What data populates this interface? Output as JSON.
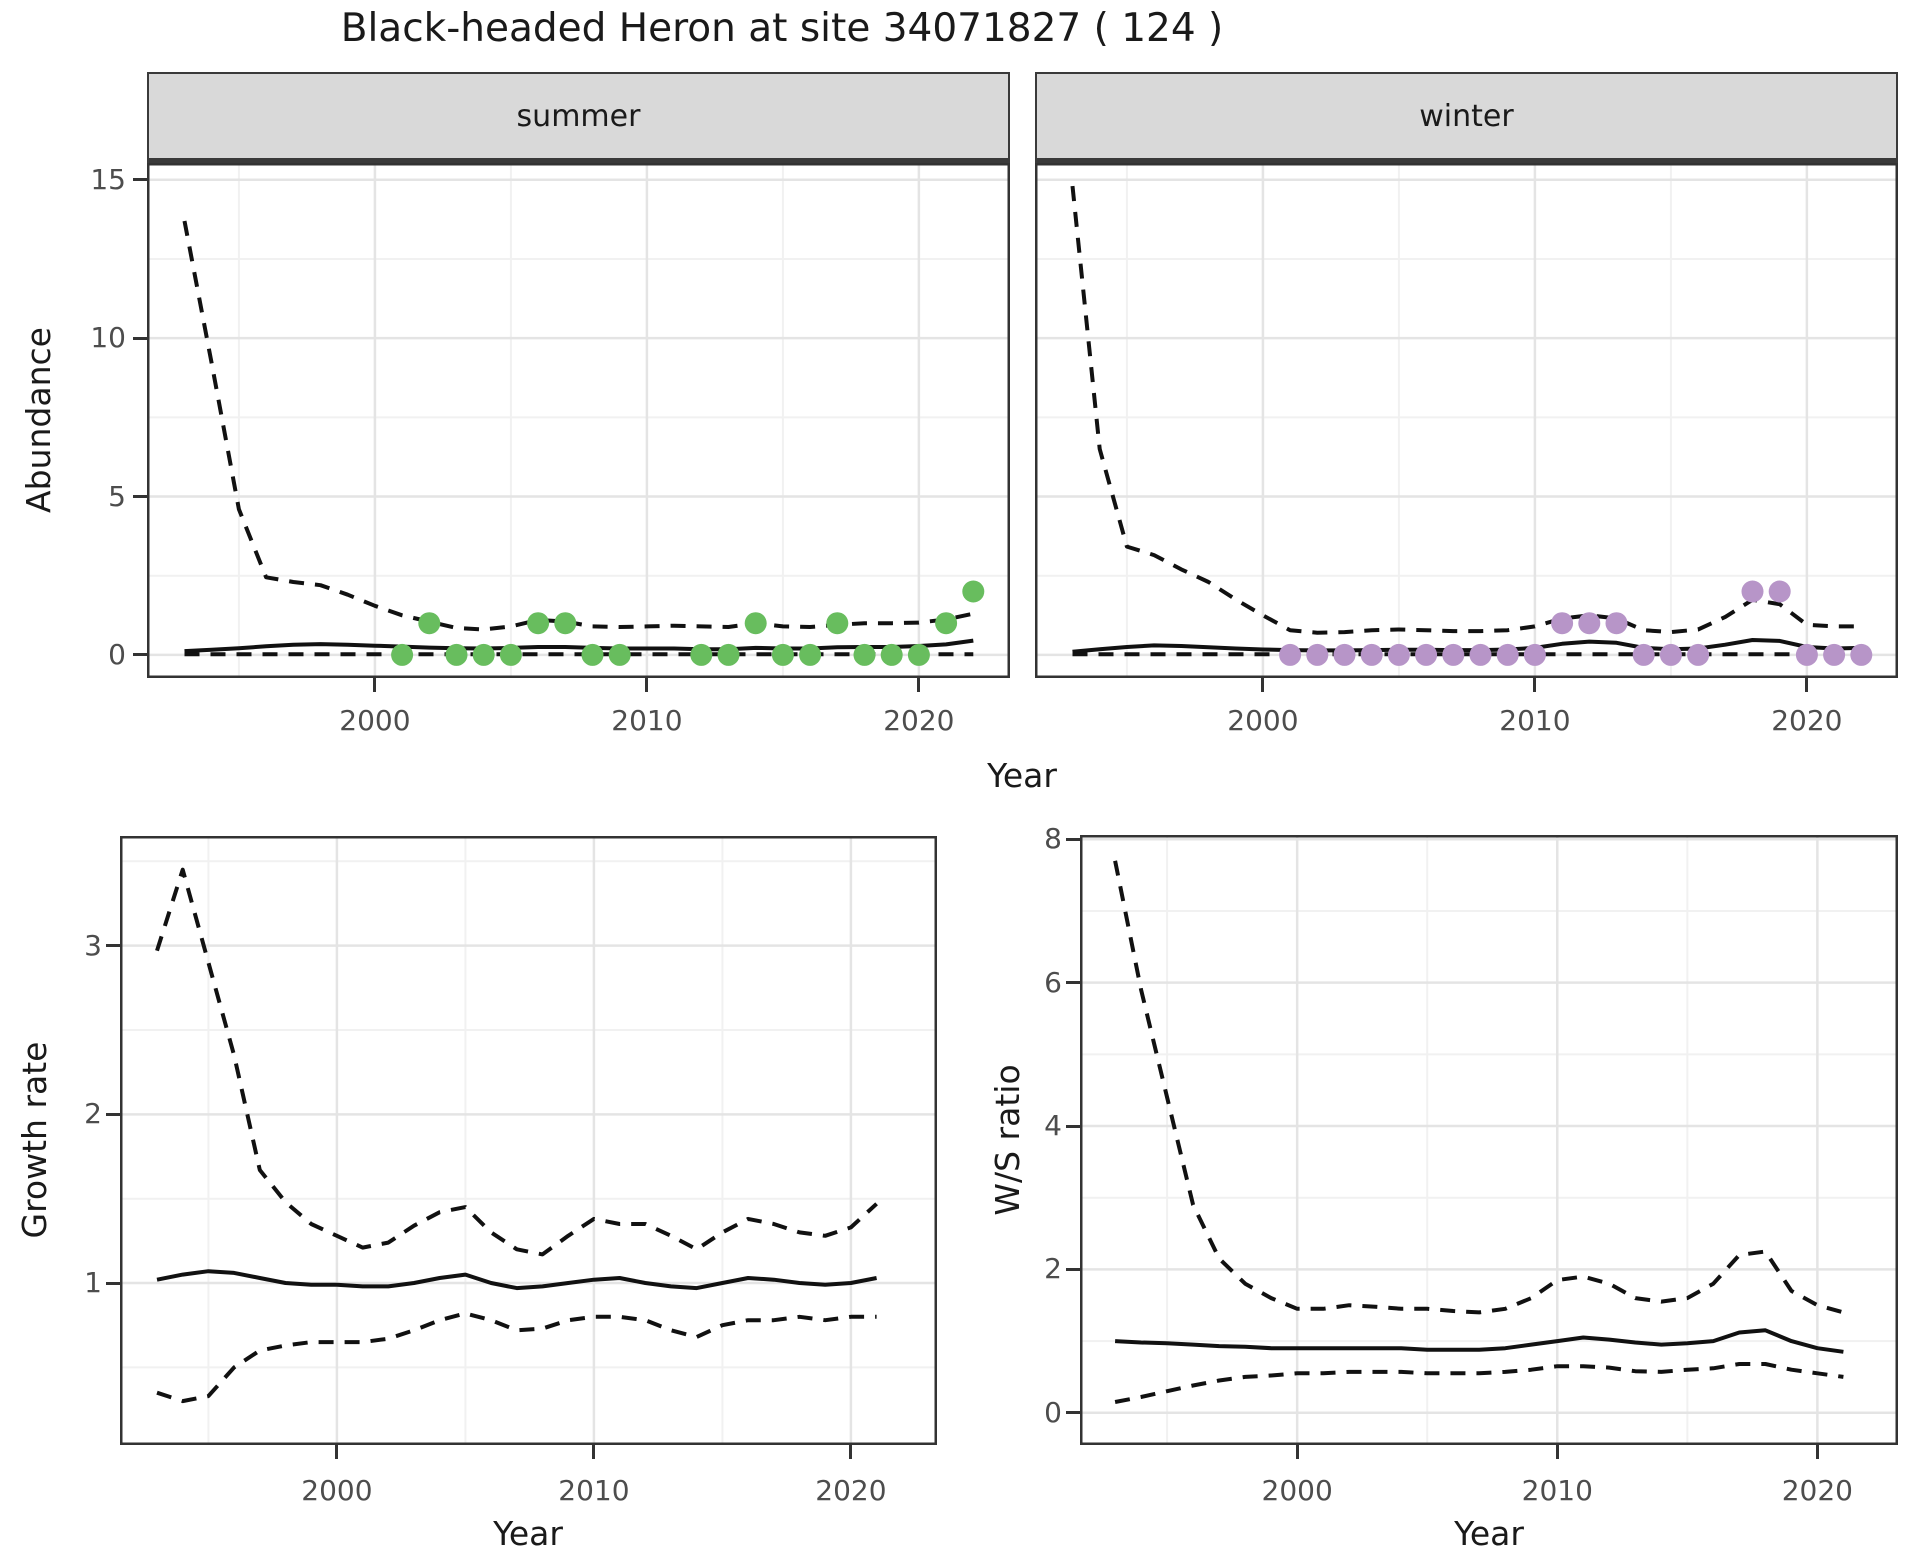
{
  "title": "Black-headed Heron at site 34071827 ( 124 )",
  "axis_titles": {
    "abundance": "Abundance",
    "growth_rate": "Growth rate",
    "ws_ratio": "W/S ratio",
    "year": "Year"
  },
  "colors": {
    "line": "#111111",
    "grid_major": "#e4e4e4",
    "grid_minor": "#f1f1f1",
    "panel_border": "#333333",
    "strip_bg": "#d9d9d9",
    "summer_point": "#68bd5e",
    "winter_point": "#b795c8",
    "tick_text": "#4d4d4d"
  },
  "chart_data": [
    {
      "type": "line",
      "panel": "abundance-summer",
      "facet_label": "summer",
      "xlabel": "Year",
      "ylabel": "Abundance",
      "xlim": [
        1991.62,
        2023.35
      ],
      "ylim": [
        -0.73,
        15.53
      ],
      "x_ticks": [
        2000,
        2010,
        2020
      ],
      "x_minor": [
        1995,
        2005,
        2015
      ],
      "y_ticks": [
        0,
        5,
        10,
        15
      ],
      "y_minor": [
        2.5,
        7.5,
        12.5
      ],
      "series": [
        {
          "name": "upper-95ci",
          "style": "dashed",
          "x_start": 1993,
          "values": [
            13.7,
            9.2,
            4.6,
            2.45,
            2.3,
            2.2,
            1.9,
            1.55,
            1.25,
            1.05,
            0.85,
            0.8,
            0.9,
            1.1,
            1.05,
            0.9,
            0.88,
            0.9,
            0.92,
            0.9,
            0.88,
            1.0,
            0.9,
            0.88,
            0.95,
            1.0,
            1.0,
            1.02,
            1.12,
            1.3
          ]
        },
        {
          "name": "mean-abundance",
          "style": "solid",
          "x_start": 1993,
          "values": [
            0.12,
            0.16,
            0.21,
            0.27,
            0.32,
            0.34,
            0.32,
            0.29,
            0.26,
            0.23,
            0.21,
            0.2,
            0.22,
            0.25,
            0.25,
            0.22,
            0.2,
            0.2,
            0.2,
            0.18,
            0.18,
            0.22,
            0.2,
            0.2,
            0.24,
            0.25,
            0.25,
            0.28,
            0.33,
            0.45
          ]
        },
        {
          "name": "lower-95ci",
          "style": "dashed",
          "x_start": 1993,
          "values": [
            0.02,
            0.02,
            0.02,
            0.02,
            0.02,
            0.02,
            0.02,
            0.02,
            0.02,
            0.02,
            0.02,
            0.02,
            0.02,
            0.02,
            0.02,
            0.02,
            0.02,
            0.02,
            0.02,
            0.02,
            0.02,
            0.02,
            0.02,
            0.02,
            0.02,
            0.02,
            0.02,
            0.02,
            0.02,
            0.02
          ]
        }
      ],
      "observations": {
        "name": "summer-counts",
        "color": "#68bd5e",
        "points": [
          [
            2001,
            0
          ],
          [
            2002,
            1
          ],
          [
            2003,
            0
          ],
          [
            2004,
            0
          ],
          [
            2005,
            0
          ],
          [
            2006,
            1
          ],
          [
            2007,
            1
          ],
          [
            2008,
            0
          ],
          [
            2009,
            0
          ],
          [
            2012,
            0
          ],
          [
            2013,
            0
          ],
          [
            2014,
            1
          ],
          [
            2015,
            0
          ],
          [
            2016,
            0
          ],
          [
            2017,
            1
          ],
          [
            2018,
            0
          ],
          [
            2019,
            0
          ],
          [
            2020,
            0
          ],
          [
            2021,
            1
          ],
          [
            2022,
            2
          ]
        ]
      }
    },
    {
      "type": "line",
      "panel": "abundance-winter",
      "facet_label": "winter",
      "xlabel": "Year",
      "ylabel": "Abundance",
      "xlim": [
        1991.62,
        2023.35
      ],
      "ylim": [
        -0.73,
        15.53
      ],
      "x_ticks": [
        2000,
        2010,
        2020
      ],
      "x_minor": [
        1995,
        2005,
        2015
      ],
      "y_ticks": [
        0,
        5,
        10,
        15
      ],
      "y_minor": [
        2.5,
        7.5,
        12.5
      ],
      "series": [
        {
          "name": "upper-95ci",
          "style": "dashed",
          "x_start": 1993,
          "values": [
            14.8,
            6.5,
            3.42,
            3.15,
            2.7,
            2.3,
            1.75,
            1.25,
            0.78,
            0.7,
            0.72,
            0.78,
            0.8,
            0.78,
            0.75,
            0.75,
            0.78,
            0.9,
            1.15,
            1.25,
            1.15,
            0.78,
            0.72,
            0.8,
            1.2,
            1.74,
            1.6,
            0.95,
            0.9,
            0.9
          ]
        },
        {
          "name": "mean-abundance",
          "style": "solid",
          "x_start": 1993,
          "values": [
            0.1,
            0.18,
            0.25,
            0.3,
            0.28,
            0.24,
            0.2,
            0.17,
            0.15,
            0.14,
            0.14,
            0.15,
            0.16,
            0.16,
            0.15,
            0.15,
            0.17,
            0.22,
            0.35,
            0.42,
            0.38,
            0.22,
            0.18,
            0.2,
            0.32,
            0.47,
            0.44,
            0.25,
            0.2,
            0.22
          ]
        },
        {
          "name": "lower-95ci",
          "style": "dashed",
          "x_start": 1993,
          "values": [
            0.02,
            0.02,
            0.02,
            0.02,
            0.02,
            0.02,
            0.02,
            0.02,
            0.02,
            0.02,
            0.02,
            0.02,
            0.02,
            0.02,
            0.02,
            0.02,
            0.02,
            0.02,
            0.02,
            0.02,
            0.02,
            0.02,
            0.02,
            0.02,
            0.02,
            0.02,
            0.02,
            0.02,
            0.02,
            0.02
          ]
        }
      ],
      "observations": {
        "name": "winter-counts",
        "color": "#b795c8",
        "points": [
          [
            2001,
            0
          ],
          [
            2002,
            0
          ],
          [
            2003,
            0
          ],
          [
            2004,
            0
          ],
          [
            2005,
            0
          ],
          [
            2006,
            0
          ],
          [
            2007,
            0
          ],
          [
            2008,
            0
          ],
          [
            2009,
            0
          ],
          [
            2010,
            0
          ],
          [
            2011,
            1
          ],
          [
            2012,
            1
          ],
          [
            2013,
            1
          ],
          [
            2014,
            0
          ],
          [
            2015,
            0
          ],
          [
            2016,
            0
          ],
          [
            2018,
            2
          ],
          [
            2019,
            2
          ],
          [
            2020,
            0
          ],
          [
            2021,
            0
          ],
          [
            2022,
            0
          ]
        ]
      }
    },
    {
      "type": "line",
      "panel": "growth-rate",
      "xlabel": "Year",
      "ylabel": "Growth rate",
      "xlim": [
        1991.56,
        2023.35
      ],
      "ylim": [
        0.04,
        3.65
      ],
      "x_ticks": [
        2000,
        2010,
        2020
      ],
      "x_minor": [
        1995,
        2005,
        2015
      ],
      "y_ticks": [
        1,
        2,
        3
      ],
      "y_minor": [
        0.5,
        1.5,
        2.5,
        3.5
      ],
      "series": [
        {
          "name": "upper-95ci",
          "style": "dashed",
          "x_start": 1993,
          "values": [
            2.97,
            3.45,
            2.9,
            2.35,
            1.67,
            1.48,
            1.35,
            1.28,
            1.21,
            1.24,
            1.34,
            1.42,
            1.45,
            1.3,
            1.2,
            1.17,
            1.28,
            1.38,
            1.35,
            1.35,
            1.28,
            1.2,
            1.3,
            1.38,
            1.35,
            1.3,
            1.28,
            1.33,
            1.47
          ]
        },
        {
          "name": "mean-growth-rate",
          "style": "solid",
          "x_start": 1993,
          "values": [
            1.02,
            1.05,
            1.07,
            1.06,
            1.03,
            1.0,
            0.99,
            0.99,
            0.98,
            0.98,
            1.0,
            1.03,
            1.05,
            1.0,
            0.97,
            0.98,
            1.0,
            1.02,
            1.03,
            1.0,
            0.98,
            0.97,
            1.0,
            1.03,
            1.02,
            1.0,
            0.99,
            1.0,
            1.03
          ]
        },
        {
          "name": "lower-95ci",
          "style": "dashed",
          "x_start": 1993,
          "values": [
            0.35,
            0.3,
            0.33,
            0.5,
            0.6,
            0.63,
            0.65,
            0.65,
            0.65,
            0.67,
            0.72,
            0.78,
            0.82,
            0.78,
            0.72,
            0.73,
            0.78,
            0.8,
            0.8,
            0.78,
            0.72,
            0.68,
            0.75,
            0.78,
            0.78,
            0.8,
            0.78,
            0.8,
            0.8
          ]
        }
      ]
    },
    {
      "type": "line",
      "panel": "ws-ratio",
      "xlabel": "Year",
      "ylabel": "W/S ratio",
      "xlim": [
        1991.65,
        2023.1
      ],
      "ylim": [
        -0.45,
        8.06
      ],
      "x_ticks": [
        2000,
        2010,
        2020
      ],
      "x_minor": [
        1995,
        2005,
        2015
      ],
      "y_ticks": [
        0,
        2,
        4,
        6,
        8
      ],
      "y_minor": [
        1,
        3,
        5,
        7
      ],
      "series": [
        {
          "name": "upper-95ci",
          "style": "dashed",
          "x_start": 1993,
          "values": [
            7.7,
            5.9,
            4.4,
            2.9,
            2.15,
            1.8,
            1.6,
            1.45,
            1.45,
            1.5,
            1.48,
            1.45,
            1.45,
            1.42,
            1.4,
            1.45,
            1.6,
            1.85,
            1.9,
            1.8,
            1.6,
            1.55,
            1.6,
            1.8,
            2.2,
            2.25,
            1.7,
            1.5,
            1.4
          ]
        },
        {
          "name": "mean-ws-ratio",
          "style": "solid",
          "x_start": 1993,
          "values": [
            1.0,
            0.98,
            0.97,
            0.95,
            0.93,
            0.92,
            0.9,
            0.9,
            0.9,
            0.9,
            0.9,
            0.9,
            0.88,
            0.88,
            0.88,
            0.9,
            0.95,
            1.0,
            1.05,
            1.02,
            0.98,
            0.95,
            0.97,
            1.0,
            1.12,
            1.15,
            1.0,
            0.9,
            0.85
          ]
        },
        {
          "name": "lower-95ci",
          "style": "dashed",
          "x_start": 1993,
          "values": [
            0.15,
            0.22,
            0.3,
            0.38,
            0.45,
            0.5,
            0.52,
            0.55,
            0.55,
            0.57,
            0.57,
            0.57,
            0.55,
            0.55,
            0.55,
            0.57,
            0.6,
            0.65,
            0.65,
            0.63,
            0.58,
            0.57,
            0.6,
            0.62,
            0.68,
            0.68,
            0.6,
            0.55,
            0.5
          ]
        }
      ]
    }
  ]
}
